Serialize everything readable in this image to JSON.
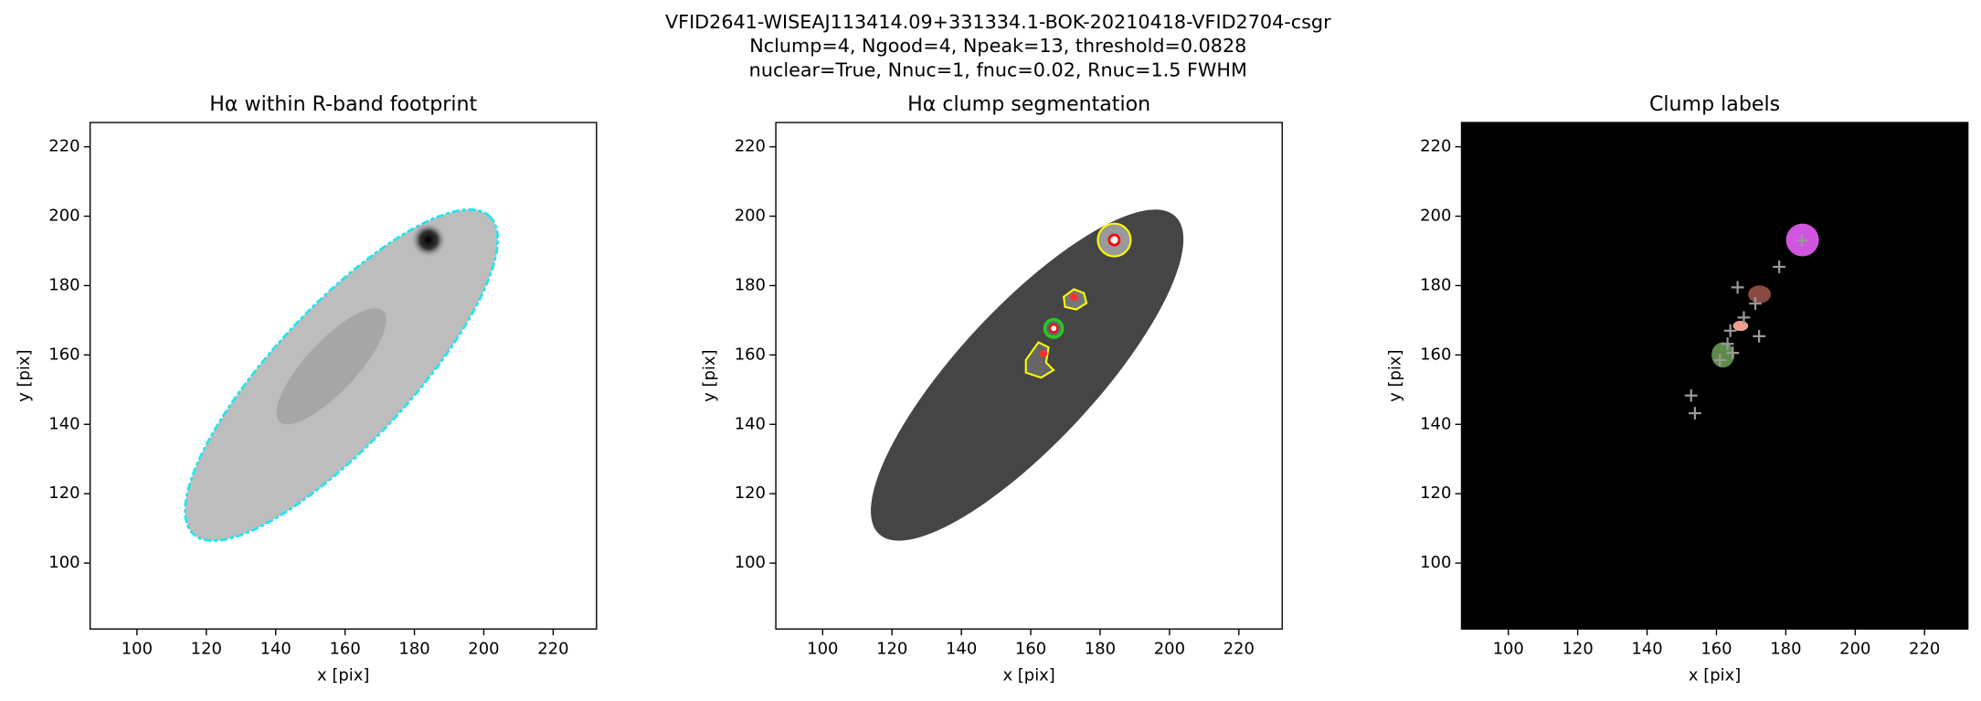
{
  "suptitle": [
    "VFID2641-WISEAJ113414.09+331334.1-BOK-20210418-VFID2704-csgr",
    "Nclump=4, Ngood=4, Npeak=13, threshold=0.0828",
    "nuclear=True, Nnuc=1, fnuc=0.02, Rnuc=1.5 FWHM"
  ],
  "chart_data": [
    {
      "type": "image",
      "title": "Hα within R-band footprint",
      "xlabel": "x [pix]",
      "ylabel": "y [pix]",
      "xlim": [
        86.5,
        232.5
      ],
      "ylim": [
        81,
        227
      ],
      "xticks": [
        100,
        120,
        140,
        160,
        180,
        200,
        220
      ],
      "yticks": [
        100,
        120,
        140,
        160,
        180,
        200,
        220
      ]
    },
    {
      "type": "image",
      "title": "Hα clump segmentation",
      "xlabel": "x [pix]",
      "ylabel": "y [pix]",
      "xlim": [
        86.5,
        232.5
      ],
      "ylim": [
        81,
        227
      ],
      "xticks": [
        100,
        120,
        140,
        160,
        180,
        200,
        220
      ],
      "yticks": [
        100,
        120,
        140,
        160,
        180,
        200,
        220
      ]
    },
    {
      "type": "scatter",
      "title": "Clump labels",
      "xlabel": "x [pix]",
      "ylabel": "y [pix]",
      "xlim": [
        86.5,
        232.5
      ],
      "ylim": [
        81,
        227
      ],
      "xticks": [
        100,
        120,
        140,
        160,
        180,
        200,
        220
      ],
      "yticks": [
        100,
        120,
        140,
        160,
        180,
        200,
        220
      ],
      "marker_color": "#9a9a9a",
      "x": [
        184.7,
        178.1,
        166.1,
        171.2,
        167.9,
        172.3,
        164,
        163.2,
        164.7,
        161,
        152.7,
        153.8
      ],
      "y": [
        193,
        185.4,
        179.5,
        174.8,
        170.8,
        165.4,
        167,
        163.2,
        160.6,
        158.5,
        148.3,
        143.2
      ]
    }
  ]
}
